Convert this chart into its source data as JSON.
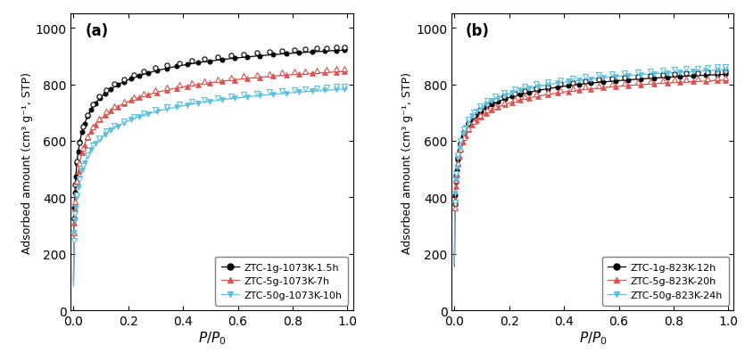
{
  "panel_a": {
    "label": "(a)",
    "legend_labels": [
      "ZTC-1g-1073K-1.5h",
      "ZTC-5g-1073K-7h",
      "ZTC-50g-1073K-10h"
    ],
    "colors": [
      "black",
      "#d9534f",
      "#5bc0de"
    ]
  },
  "panel_b": {
    "label": "(b)",
    "legend_labels": [
      "ZTC-1g-823K-12h",
      "ZTC-5g-823K-20h",
      "ZTC-50g-823K-24h"
    ],
    "colors": [
      "black",
      "#d9534f",
      "#5bc0de"
    ]
  },
  "ylabel": "Adsorbed amount (cm³ g⁻¹, STP)",
  "xlabel": "$P/P_0$",
  "ylim": [
    0,
    1050
  ],
  "xlim": [
    -0.01,
    1.02
  ],
  "yticks": [
    0,
    200,
    400,
    600,
    800,
    1000
  ],
  "xticks": [
    0.0,
    0.2,
    0.4,
    0.6,
    0.8,
    1.0
  ]
}
